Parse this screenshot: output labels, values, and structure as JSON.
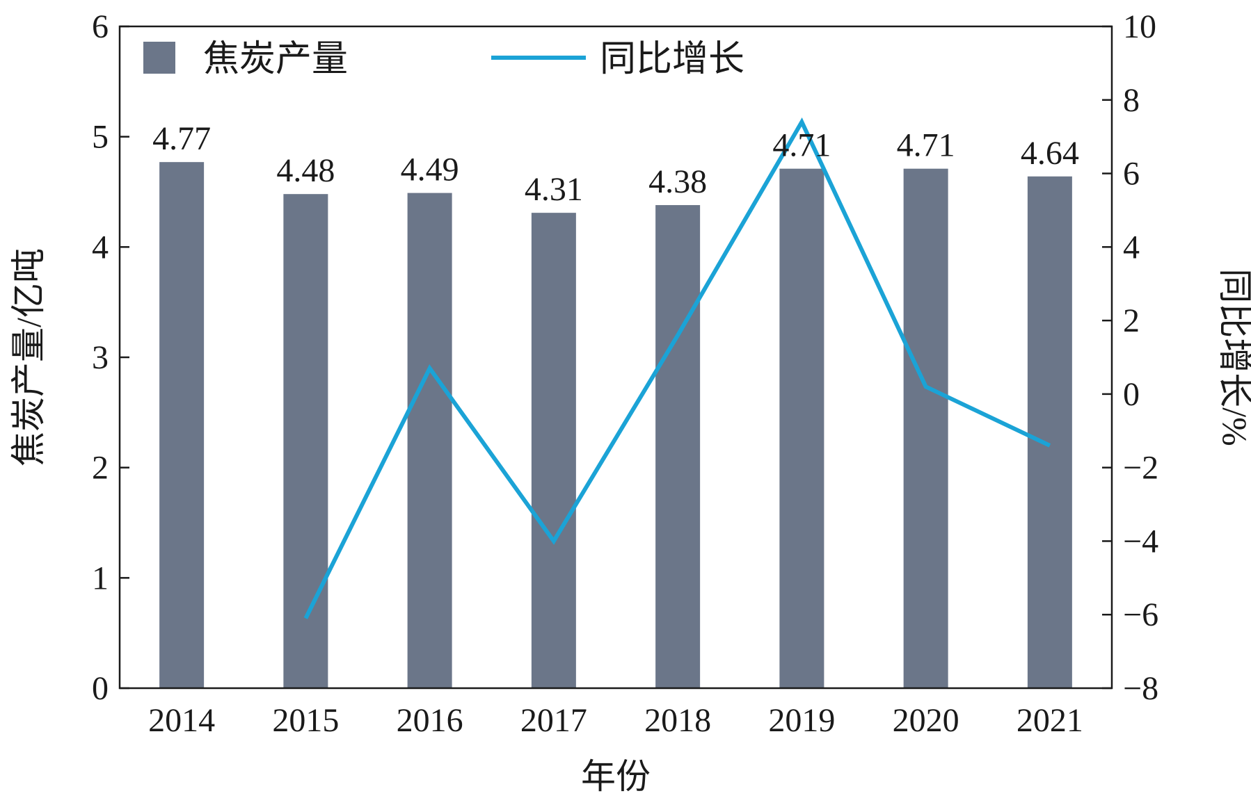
{
  "chart_data": {
    "type": "bar",
    "categories": [
      "2014",
      "2015",
      "2016",
      "2017",
      "2018",
      "2019",
      "2020",
      "2021"
    ],
    "series": [
      {
        "name": "焦炭产量",
        "type": "bar",
        "axis": "left",
        "values": [
          4.77,
          4.48,
          4.49,
          4.31,
          4.38,
          4.71,
          4.71,
          4.64
        ],
        "data_labels": [
          "4.77",
          "4.48",
          "4.49",
          "4.31",
          "4.38",
          "4.71",
          "4.71",
          "4.64"
        ]
      },
      {
        "name": "同比增长",
        "type": "line",
        "axis": "right",
        "x": [
          "2015",
          "2016",
          "2017",
          "2018",
          "2019",
          "2020",
          "2021"
        ],
        "values": [
          -6.1,
          0.7,
          -4.0,
          1.6,
          7.4,
          0.2,
          -1.4
        ]
      }
    ],
    "xlabel": "年份",
    "ylabel": "焦炭产量/亿吨",
    "y2label": "同比增长/%",
    "ylim": [
      0,
      6
    ],
    "y2lim": [
      -8,
      10
    ],
    "yticks": [
      "0",
      "1",
      "2",
      "3",
      "4",
      "5",
      "6"
    ],
    "y2ticks": [
      "−8",
      "−6",
      "−4",
      "−2",
      "0",
      "2",
      "4",
      "6",
      "8",
      "10"
    ],
    "legend_position": "top",
    "grid": false,
    "colors": {
      "bar": "#6b7689",
      "line": "#1ba3d6",
      "axis": "#1a1a1a"
    }
  }
}
